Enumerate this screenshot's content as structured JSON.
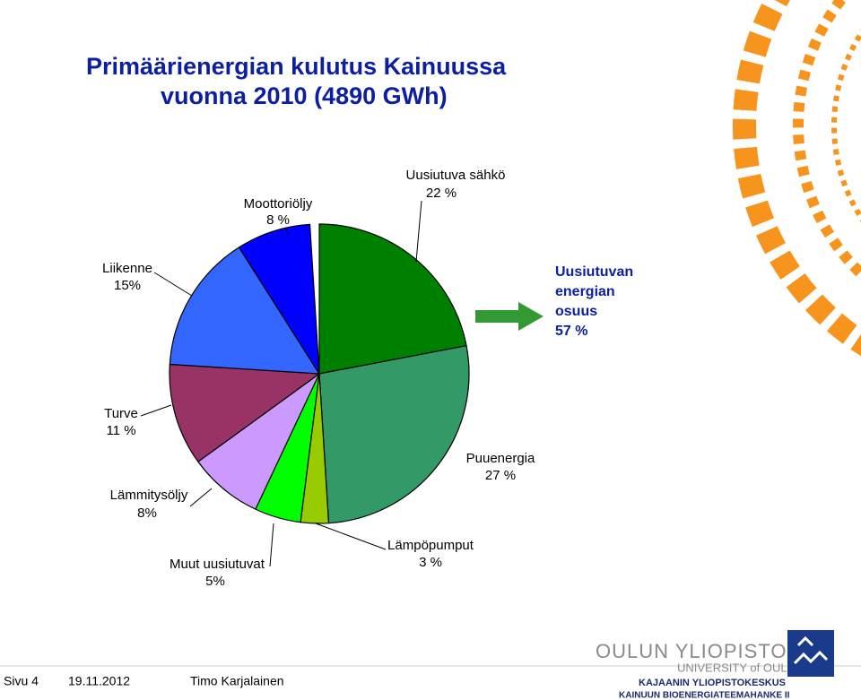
{
  "chart_data": {
    "type": "pie",
    "title": [
      "Primäärienergian kulutus Kainuussa",
      "vuonna 2010 (4890 GWh)"
    ],
    "categories": [
      "Uusiutuva sähkö",
      "Puuenergia",
      "Lämpöpumput",
      "Muut uusiutuvat",
      "Lämmitysöljy",
      "Turve",
      "Liikenne",
      "Moottoriöljy"
    ],
    "values": [
      22,
      27,
      3,
      5,
      8,
      11,
      15,
      8
    ],
    "value_labels": [
      "22 %",
      "27 %",
      "3 %",
      "5%",
      "8%",
      "11 %",
      "15%",
      "8 %"
    ],
    "colors": [
      "#008000",
      "#339966",
      "#99cc00",
      "#00ff00",
      "#cc99ff",
      "#993366",
      "#3366ff",
      "#0000ff"
    ],
    "annotation": [
      "Uusiutuvan",
      "energian",
      "osuus",
      "57 %"
    ]
  },
  "footer": {
    "page": "Sivu 4",
    "date": "19.11.2012",
    "author": "Timo Karjalainen",
    "logo": [
      "OULUN YLIOPISTO",
      "UNIVERSITY of OULU",
      "KAJAANIN YLIOPISTOKESKUS",
      "KAINUUN BIOENERGIATEEMAHANKE II"
    ]
  }
}
